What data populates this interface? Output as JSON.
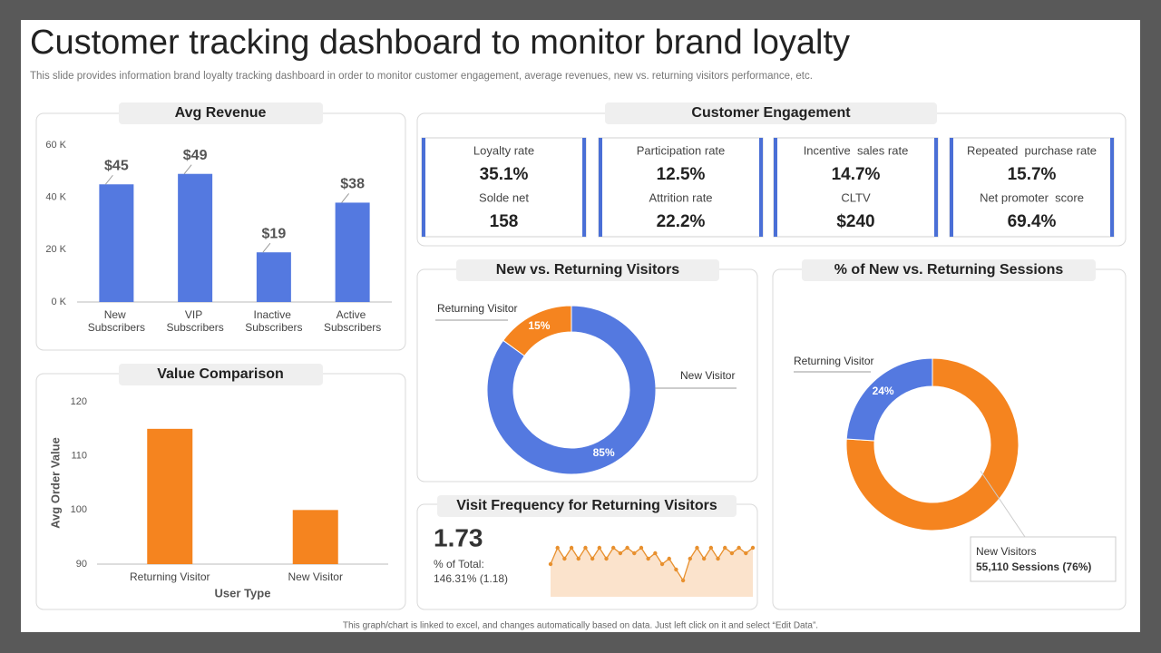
{
  "header": {
    "title": "Customer tracking dashboard to monitor brand loyalty",
    "subtitle": "This slide provides information brand loyalty tracking dashboard in order to monitor customer engagement, average revenues, new vs. returning visitors performance, etc."
  },
  "footer": "This graph/chart is linked to excel, and changes automatically based on data. Just left click on it and select “Edit Data”.",
  "engagement": {
    "title": "Customer Engagement",
    "cards": [
      {
        "label": "Loyalty rate",
        "value": "35.1%",
        "label2": "Solde net",
        "value2": "158"
      },
      {
        "label": "Participation rate",
        "value": "12.5%",
        "label2": "Attrition rate",
        "value2": "22.2%"
      },
      {
        "label": "Incentive  sales rate",
        "value": "14.7%",
        "label2": "CLTV",
        "value2": "$240"
      },
      {
        "label": "Repeated  purchase rate",
        "value": "15.7%",
        "label2": "Net promoter  score",
        "value2": "69.4%"
      }
    ]
  },
  "chart_data": [
    {
      "type": "bar",
      "title": "Avg Revenue",
      "categories": [
        "New Subscribers",
        "VIP Subscribers",
        "Inactive Subscribers",
        "Active Subscribers"
      ],
      "values": [
        45,
        49,
        19,
        38
      ],
      "value_labels": [
        "$45",
        "$49",
        "$19",
        "$38"
      ],
      "color": "#5479e0",
      "ylim": [
        0,
        60
      ],
      "yticks": [
        {
          "value": 0,
          "label": "0 K"
        },
        {
          "value": 20,
          "label": "20 K"
        },
        {
          "value": 40,
          "label": "40 K"
        },
        {
          "value": 60,
          "label": "60 K"
        }
      ]
    },
    {
      "type": "bar",
      "title": "Value Comparison",
      "categories": [
        "Returning Visitor",
        "New Visitor"
      ],
      "values": [
        115,
        100
      ],
      "color": "#f5841f",
      "ylim": [
        90,
        120
      ],
      "yticks": [
        90,
        100,
        110,
        120
      ],
      "x_label": "User Type",
      "y_label": "Avg Order Value"
    },
    {
      "type": "donut",
      "title": "New vs. Returning Visitors",
      "categories": [
        "New Visitor",
        "Returning Visitor"
      ],
      "values": [
        85,
        15
      ],
      "value_labels": [
        "85%",
        "15%"
      ],
      "colors": [
        "#5479e0",
        "#f5841f"
      ]
    },
    {
      "type": "donut",
      "title": "% of New vs. Returning Sessions",
      "categories": [
        "New Visitors",
        "Returning Visitor"
      ],
      "values": [
        76,
        24
      ],
      "value_labels": [
        null,
        "24%"
      ],
      "colors": [
        "#f5841f",
        "#5479e0"
      ],
      "callout": "55,110 Sessions (76%)"
    },
    {
      "type": "line",
      "title": "Visit Frequency for Returning Visitors",
      "big_number": "1.73",
      "notes": [
        "% of Total:",
        "146.31% (1.18)"
      ],
      "color": "#e8902e",
      "area_color": "#fbe3cc",
      "values": [
        1.6,
        1.9,
        1.7,
        1.9,
        1.7,
        1.9,
        1.7,
        1.9,
        1.7,
        1.9,
        1.8,
        1.9,
        1.8,
        1.9,
        1.7,
        1.8,
        1.6,
        1.7,
        1.5,
        1.3,
        1.7,
        1.9,
        1.7,
        1.9,
        1.7,
        1.9,
        1.8,
        1.9,
        1.8,
        1.9
      ]
    }
  ]
}
